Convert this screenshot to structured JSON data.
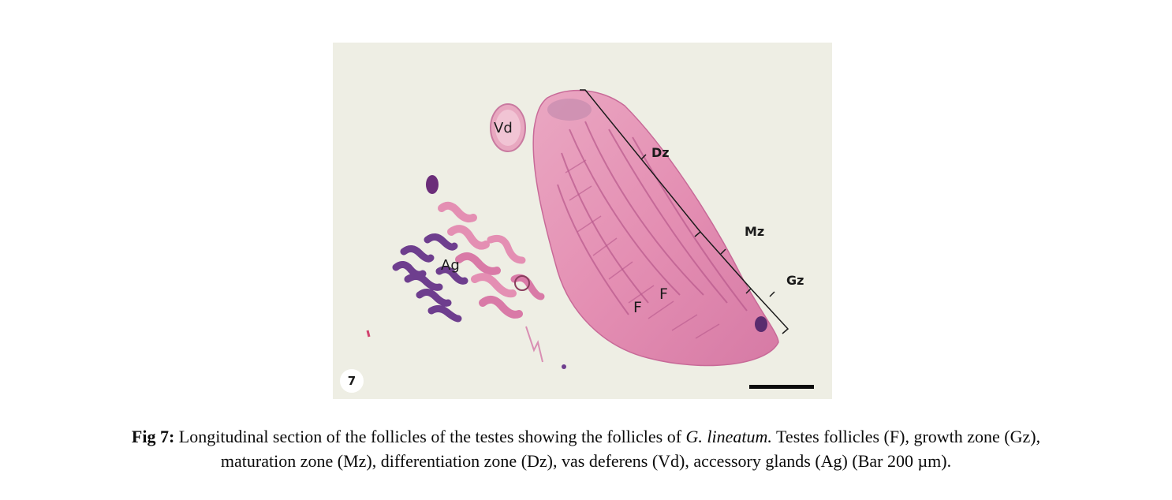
{
  "figure": {
    "panel_number": "7",
    "labels": {
      "vas_deferens": "Vd",
      "accessory_glands": "Ag",
      "differentiation_zone": "Dz",
      "maturation_zone": "Mz",
      "growth_zone": "Gz",
      "follicle_a": "F",
      "follicle_b": "F"
    },
    "colors": {
      "background": "#eeeee4",
      "eosin_pink": "#e58fb4",
      "hematoxylin_purple": "#7a4c9a"
    }
  },
  "caption": {
    "fig_label": "Fig 7:",
    "text_before_species": " Longitudinal section of the follicles of the testes showing the follicles of ",
    "species": "G. lineatum.",
    "text_after_species": " Testes follicles (F), growth zone (Gz),",
    "line2": "maturation zone (Mz), differentiation zone (Dz), vas deferens (Vd), accessory glands (Ag) (Bar 200 µm)."
  }
}
